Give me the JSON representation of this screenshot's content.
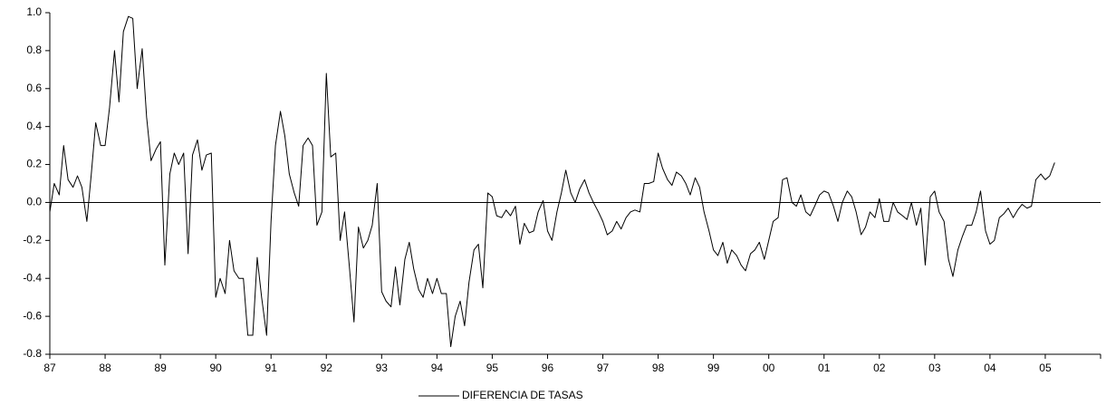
{
  "chart_data": {
    "type": "line",
    "x": [
      1987.0,
      1987.08,
      1987.17,
      1987.25,
      1987.33,
      1987.42,
      1987.5,
      1987.58,
      1987.67,
      1987.75,
      1987.83,
      1987.92,
      1988.0,
      1988.08,
      1988.17,
      1988.25,
      1988.33,
      1988.42,
      1988.5,
      1988.58,
      1988.67,
      1988.75,
      1988.83,
      1988.92,
      1989.0,
      1989.08,
      1989.17,
      1989.25,
      1989.33,
      1989.42,
      1989.5,
      1989.58,
      1989.67,
      1989.75,
      1989.83,
      1989.92,
      1990.0,
      1990.08,
      1990.17,
      1990.25,
      1990.33,
      1990.42,
      1990.5,
      1990.58,
      1990.67,
      1990.75,
      1990.83,
      1990.92,
      1991.0,
      1991.08,
      1991.17,
      1991.25,
      1991.33,
      1991.42,
      1991.5,
      1991.58,
      1991.67,
      1991.75,
      1991.83,
      1991.92,
      1992.0,
      1992.08,
      1992.17,
      1992.25,
      1992.33,
      1992.42,
      1992.5,
      1992.58,
      1992.67,
      1992.75,
      1992.83,
      1992.92,
      1993.0,
      1993.08,
      1993.17,
      1993.25,
      1993.33,
      1993.42,
      1993.5,
      1993.58,
      1993.67,
      1993.75,
      1993.83,
      1993.92,
      1994.0,
      1994.08,
      1994.17,
      1994.25,
      1994.33,
      1994.42,
      1994.5,
      1994.58,
      1994.67,
      1994.75,
      1994.83,
      1994.92,
      1995.0,
      1995.08,
      1995.17,
      1995.25,
      1995.33,
      1995.42,
      1995.5,
      1995.58,
      1995.67,
      1995.75,
      1995.83,
      1995.92,
      1996.0,
      1996.08,
      1996.17,
      1996.25,
      1996.33,
      1996.42,
      1996.5,
      1996.58,
      1996.67,
      1996.75,
      1996.83,
      1996.92,
      1997.0,
      1997.08,
      1997.17,
      1997.25,
      1997.33,
      1997.42,
      1997.5,
      1997.58,
      1997.67,
      1997.75,
      1997.83,
      1997.92,
      1998.0,
      1998.08,
      1998.17,
      1998.25,
      1998.33,
      1998.42,
      1998.5,
      1998.58,
      1998.67,
      1998.75,
      1998.83,
      1998.92,
      1999.0,
      1999.08,
      1999.17,
      1999.25,
      1999.33,
      1999.42,
      1999.5,
      1999.58,
      1999.67,
      1999.75,
      1999.83,
      1999.92,
      2000.0,
      2000.08,
      2000.17,
      2000.25,
      2000.33,
      2000.42,
      2000.5,
      2000.58,
      2000.67,
      2000.75,
      2000.83,
      2000.92,
      2001.0,
      2001.08,
      2001.17,
      2001.25,
      2001.33,
      2001.42,
      2001.5,
      2001.58,
      2001.67,
      2001.75,
      2001.83,
      2001.92,
      2002.0,
      2002.08,
      2002.17,
      2002.25,
      2002.33,
      2002.42,
      2002.5,
      2002.58,
      2002.67,
      2002.75,
      2002.83,
      2002.92,
      2003.0,
      2003.08,
      2003.17,
      2003.25,
      2003.33,
      2003.42,
      2003.5,
      2003.58,
      2003.67,
      2003.75,
      2003.83,
      2003.92,
      2004.0,
      2004.08,
      2004.17,
      2004.25,
      2004.33,
      2004.42,
      2004.5,
      2004.58,
      2004.67,
      2004.75,
      2004.83,
      2004.92,
      2005.0,
      2005.08,
      2005.17
    ],
    "series": [
      {
        "name": "DIFERENCIA DE TASAS",
        "color": "#000000",
        "values": [
          -0.05,
          0.1,
          0.04,
          0.3,
          0.12,
          0.08,
          0.14,
          0.08,
          -0.1,
          0.15,
          0.42,
          0.3,
          0.3,
          0.5,
          0.8,
          0.53,
          0.9,
          0.98,
          0.97,
          0.6,
          0.81,
          0.45,
          0.22,
          0.28,
          0.32,
          -0.33,
          0.15,
          0.26,
          0.2,
          0.26,
          -0.27,
          0.25,
          0.33,
          0.17,
          0.25,
          0.26,
          -0.5,
          -0.4,
          -0.48,
          -0.2,
          -0.36,
          -0.4,
          -0.4,
          -0.7,
          -0.7,
          -0.29,
          -0.5,
          -0.7,
          -0.1,
          0.3,
          0.48,
          0.35,
          0.15,
          0.05,
          -0.02,
          0.3,
          0.34,
          0.3,
          -0.12,
          -0.05,
          0.68,
          0.24,
          0.26,
          -0.2,
          -0.05,
          -0.35,
          -0.63,
          -0.13,
          -0.24,
          -0.2,
          -0.12,
          0.1,
          -0.47,
          -0.52,
          -0.55,
          -0.34,
          -0.54,
          -0.3,
          -0.21,
          -0.35,
          -0.46,
          -0.5,
          -0.4,
          -0.48,
          -0.4,
          -0.48,
          -0.48,
          -0.76,
          -0.6,
          -0.52,
          -0.65,
          -0.42,
          -0.25,
          -0.22,
          -0.45,
          0.05,
          0.03,
          -0.07,
          -0.08,
          -0.04,
          -0.07,
          -0.02,
          -0.22,
          -0.11,
          -0.16,
          -0.15,
          -0.05,
          0.01,
          -0.15,
          -0.2,
          -0.05,
          0.05,
          0.17,
          0.05,
          0.0,
          0.07,
          0.12,
          0.05,
          0.0,
          -0.05,
          -0.1,
          -0.17,
          -0.15,
          -0.1,
          -0.14,
          -0.08,
          -0.05,
          -0.04,
          -0.05,
          0.1,
          0.1,
          0.11,
          0.26,
          0.18,
          0.12,
          0.09,
          0.16,
          0.14,
          0.1,
          0.04,
          0.13,
          0.08,
          -0.05,
          -0.15,
          -0.25,
          -0.28,
          -0.21,
          -0.32,
          -0.25,
          -0.28,
          -0.33,
          -0.36,
          -0.27,
          -0.25,
          -0.21,
          -0.3,
          -0.2,
          -0.1,
          -0.08,
          0.12,
          0.13,
          0.0,
          -0.02,
          0.04,
          -0.05,
          -0.07,
          -0.02,
          0.04,
          0.06,
          0.05,
          -0.02,
          -0.1,
          0.0,
          0.06,
          0.03,
          -0.05,
          -0.17,
          -0.13,
          -0.05,
          -0.08,
          0.02,
          -0.1,
          -0.1,
          0.0,
          -0.05,
          -0.07,
          -0.09,
          0.0,
          -0.12,
          -0.03,
          -0.33,
          0.03,
          0.06,
          -0.05,
          -0.1,
          -0.3,
          -0.39,
          -0.25,
          -0.18,
          -0.12,
          -0.12,
          -0.05,
          0.06,
          -0.15,
          -0.22,
          -0.2,
          -0.08,
          -0.06,
          -0.03,
          -0.08,
          -0.04,
          -0.01,
          -0.03,
          -0.02,
          0.12,
          0.15,
          0.12,
          0.14,
          0.21
        ]
      }
    ],
    "xlim": [
      1987,
      2006
    ],
    "xticks": [
      {
        "value": 1987,
        "label": "87"
      },
      {
        "value": 1988,
        "label": "88"
      },
      {
        "value": 1989,
        "label": "89"
      },
      {
        "value": 1990,
        "label": "90"
      },
      {
        "value": 1991,
        "label": "91"
      },
      {
        "value": 1992,
        "label": "92"
      },
      {
        "value": 1993,
        "label": "93"
      },
      {
        "value": 1994,
        "label": "94"
      },
      {
        "value": 1995,
        "label": "95"
      },
      {
        "value": 1996,
        "label": "96"
      },
      {
        "value": 1997,
        "label": "97"
      },
      {
        "value": 1998,
        "label": "98"
      },
      {
        "value": 1999,
        "label": "99"
      },
      {
        "value": 2000,
        "label": "00"
      },
      {
        "value": 2001,
        "label": "01"
      },
      {
        "value": 2002,
        "label": "02"
      },
      {
        "value": 2003,
        "label": "03"
      },
      {
        "value": 2004,
        "label": "04"
      },
      {
        "value": 2005,
        "label": "05"
      }
    ],
    "ylim": [
      -0.8,
      1.0
    ],
    "yticks": [
      -0.8,
      -0.6,
      -0.4,
      -0.2,
      {
        "value": 0,
        "label": "0.0"
      },
      0.2,
      0.4,
      0.6,
      0.8,
      {
        "value": 1,
        "label": "1.0"
      }
    ],
    "legend": "bottom"
  }
}
